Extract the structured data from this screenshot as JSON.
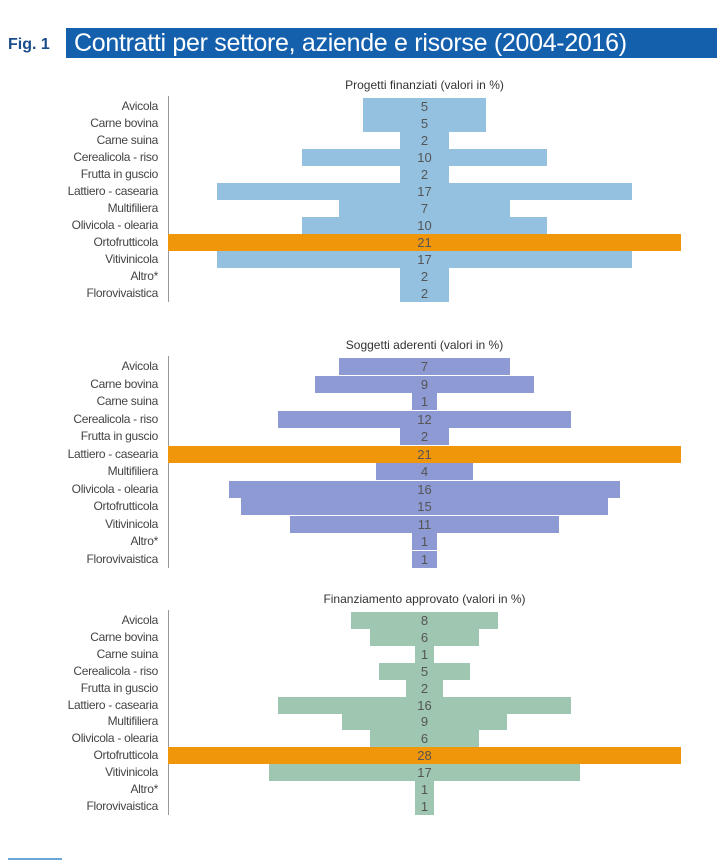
{
  "header": {
    "fig_label": "Fig. 1",
    "title": "Contratti per settore, aziende e risorse (2004-2016)"
  },
  "colors": {
    "accent": "#1560ad",
    "highlight": "#f0960a",
    "series1": "#93c1df",
    "series2": "#8e9ad3",
    "series3": "#9ec6b1"
  },
  "chart_data": [
    {
      "type": "bar",
      "title": "Progetti finanziati (valori in %)",
      "categories": [
        "Avicola",
        "Carne bovina",
        "Carne suina",
        "Cerealicola - riso",
        "Frutta in guscio",
        "Lattiero - casearia",
        "Multifiliera",
        "Olivicola  - olearia",
        "Ortofrutticola",
        "Vitivinicola",
        "Altro*",
        "Florovivaistica"
      ],
      "values": [
        5,
        5,
        2,
        10,
        2,
        17,
        7,
        10,
        21,
        17,
        2,
        2
      ],
      "highlight": "Ortofrutticola",
      "color": "#93c1df"
    },
    {
      "type": "bar",
      "title": "Soggetti aderenti (valori in %)",
      "categories": [
        "Avicola",
        "Carne bovina",
        "Carne suina",
        "Cerealicola - riso",
        "Frutta in guscio",
        "Lattiero - casearia",
        "Multifiliera",
        "Olivicola  - olearia",
        "Ortofrutticola",
        "Vitivinicola",
        "Altro*",
        "Florovivaistica"
      ],
      "values": [
        7,
        9,
        1,
        12,
        2,
        21,
        4,
        16,
        15,
        11,
        1,
        1
      ],
      "highlight": "Lattiero - casearia",
      "color": "#8e9ad3"
    },
    {
      "type": "bar",
      "title": "Finanziamento approvato (valori in %)",
      "categories": [
        "Avicola",
        "Carne bovina",
        "Carne suina",
        "Cerealicola - riso",
        "Frutta in guscio",
        "Lattiero - casearia",
        "Multifiliera",
        "Olivicola  - olearia",
        "Ortofrutticola",
        "Vitivinicola",
        "Altro*",
        "Florovivaistica"
      ],
      "values": [
        8,
        6,
        1,
        5,
        2,
        16,
        9,
        6,
        28,
        17,
        1,
        1
      ],
      "highlight": "Ortofrutticola",
      "color": "#9ec6b1"
    }
  ]
}
